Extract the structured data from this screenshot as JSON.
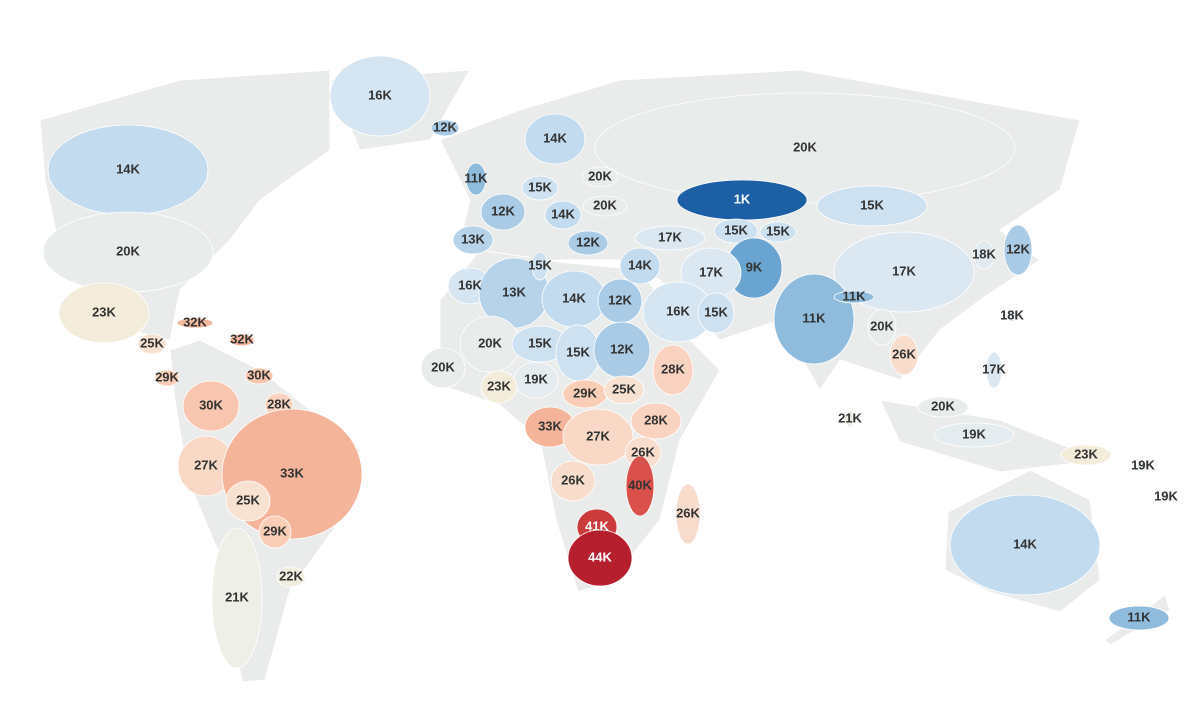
{
  "map": {
    "regions": [
      {
        "label": "16K",
        "color": "#d5e6f2"
      },
      {
        "label": "12K",
        "color": "#aacbe5"
      },
      {
        "label": "14K",
        "color": "#c2dbee"
      },
      {
        "label": "20K",
        "color": "#e8ecea"
      },
      {
        "label": "20K",
        "color": "#e8ecea"
      },
      {
        "label": "1K",
        "color": "#1c5fa5"
      },
      {
        "label": "11K",
        "color": "#8fbcdc"
      },
      {
        "label": "14K",
        "color": "#c2dbee"
      },
      {
        "label": "15K",
        "color": "#cde1f0"
      },
      {
        "label": "20K",
        "color": "#e8ecea"
      },
      {
        "label": "20K",
        "color": "#e8ecea"
      },
      {
        "label": "12K",
        "color": "#aacbe5"
      },
      {
        "label": "14K",
        "color": "#c2dbee"
      },
      {
        "label": "13K",
        "color": "#b6d3ea"
      },
      {
        "label": "12K",
        "color": "#aacbe5"
      },
      {
        "label": "17K",
        "color": "#dbe8f2"
      },
      {
        "label": "15K",
        "color": "#cde1f0"
      },
      {
        "label": "15K",
        "color": "#cde1f0"
      },
      {
        "label": "15K",
        "color": "#cde1f0"
      },
      {
        "label": "17K",
        "color": "#dbe8f2"
      },
      {
        "label": "12K",
        "color": "#aacbe5"
      },
      {
        "label": "18K",
        "color": "#e0eaf0"
      },
      {
        "label": "18K",
        "color": "#e0eaf0"
      },
      {
        "label": "17K",
        "color": "#dbe8f2"
      },
      {
        "label": "20K",
        "color": "#e8ecea"
      },
      {
        "label": "26K",
        "color": "#f8ddcc"
      },
      {
        "label": "20K",
        "color": "#e8ecea"
      },
      {
        "label": "19K",
        "color": "#e4ecef"
      },
      {
        "label": "23K",
        "color": "#f3ecdb"
      },
      {
        "label": "19K",
        "color": "#e4ecef"
      },
      {
        "label": "19K",
        "color": "#e4ecef"
      },
      {
        "label": "14K",
        "color": "#c2dbee"
      },
      {
        "label": "11K",
        "color": "#8fbcdc"
      },
      {
        "label": "11K",
        "color": "#8fbcdc"
      },
      {
        "label": "11K",
        "color": "#8fbcdc"
      },
      {
        "label": "9K",
        "color": "#6aa4d0"
      },
      {
        "label": "17K",
        "color": "#dbe8f2"
      },
      {
        "label": "14K",
        "color": "#c2dbee"
      },
      {
        "label": "16K",
        "color": "#d5e6f2"
      },
      {
        "label": "15K",
        "color": "#cde1f0"
      },
      {
        "label": "21K",
        "color": "#eeefe6"
      },
      {
        "label": "16K",
        "color": "#d5e6f2"
      },
      {
        "label": "13K",
        "color": "#b6d3ea"
      },
      {
        "label": "14K",
        "color": "#c2dbee"
      },
      {
        "label": "12K",
        "color": "#aacbe5"
      },
      {
        "label": "15K",
        "color": "#cde1f0"
      },
      {
        "label": "20K",
        "color": "#e8ecea"
      },
      {
        "label": "20K",
        "color": "#e8ecea"
      },
      {
        "label": "15K",
        "color": "#cde1f0"
      },
      {
        "label": "15K",
        "color": "#cde1f0"
      },
      {
        "label": "12K",
        "color": "#aacbe5"
      },
      {
        "label": "19K",
        "color": "#e4ecef"
      },
      {
        "label": "23K",
        "color": "#f3ecdb"
      },
      {
        "label": "29K",
        "color": "#f9cdb6"
      },
      {
        "label": "25K",
        "color": "#f7e2d2"
      },
      {
        "label": "28K",
        "color": "#f9d3bf"
      },
      {
        "label": "33K",
        "color": "#f4b49a"
      },
      {
        "label": "27K",
        "color": "#f9d8c6"
      },
      {
        "label": "28K",
        "color": "#f9d3bf"
      },
      {
        "label": "26K",
        "color": "#f8ddcc"
      },
      {
        "label": "26K",
        "color": "#f8ddcc"
      },
      {
        "label": "40K",
        "color": "#d9514a"
      },
      {
        "label": "41K",
        "color": "#cc3b3b"
      },
      {
        "label": "44K",
        "color": "#b51f2e"
      },
      {
        "label": "26K",
        "color": "#f8ddcc"
      },
      {
        "label": "23K",
        "color": "#f3ecdb"
      },
      {
        "label": "32K",
        "color": "#f6b99f"
      },
      {
        "label": "32K",
        "color": "#f6b99f"
      },
      {
        "label": "25K",
        "color": "#f7e2d2"
      },
      {
        "label": "29K",
        "color": "#f9cdb6"
      },
      {
        "label": "30K",
        "color": "#f8c6ae"
      },
      {
        "label": "30K",
        "color": "#f8c6ae"
      },
      {
        "label": "28K",
        "color": "#f9d3bf"
      },
      {
        "label": "27K",
        "color": "#f9d8c6"
      },
      {
        "label": "33K",
        "color": "#f4b49a"
      },
      {
        "label": "25K",
        "color": "#f7e2d2"
      },
      {
        "label": "29K",
        "color": "#f9cdb6"
      },
      {
        "label": "22K",
        "color": "#f1eee0"
      },
      {
        "label": "21K",
        "color": "#eeefe6"
      }
    ]
  }
}
